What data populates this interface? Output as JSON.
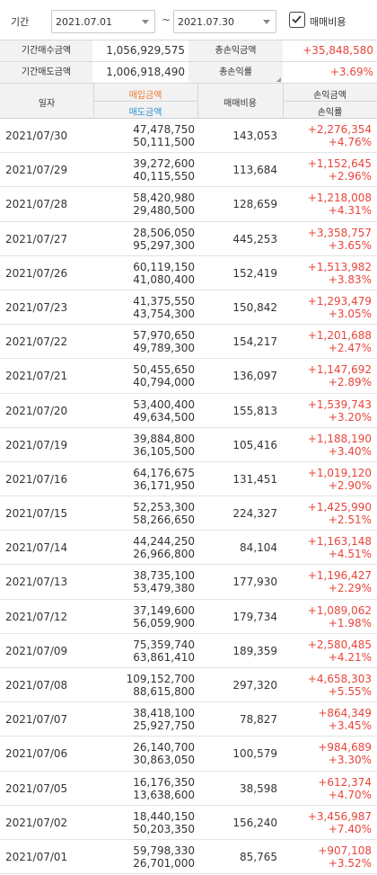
{
  "filter": {
    "label": "기간",
    "start_date": "2021.07.01",
    "separator": "~",
    "end_date": "2021.07.30",
    "fee_checkbox_label": "매매비용",
    "fee_checked": true
  },
  "summary": {
    "buy_label": "기간매수금액",
    "buy_value": "1,056,929,575",
    "sell_label": "기간매도금액",
    "sell_value": "1,006,918,490",
    "pl_label": "총손익금액",
    "pl_value": "+35,848,580",
    "rate_label": "총손익률",
    "rate_value": "+3.69%"
  },
  "headers": {
    "date": "일자",
    "buy": "매입금액",
    "sell": "매도금액",
    "fee": "매매비용",
    "pl": "손익금액",
    "rate": "손익률"
  },
  "colors": {
    "profit": "#e9453a",
    "buy_header": "#f07a2a",
    "sell_header": "#2a8fd6"
  },
  "rows": [
    {
      "date": "2021/07/30",
      "buy": "47,478,750",
      "sell": "50,111,500",
      "fee": "143,053",
      "pl": "+2,276,354",
      "rate": "+4.76%"
    },
    {
      "date": "2021/07/29",
      "buy": "39,272,600",
      "sell": "40,115,550",
      "fee": "113,684",
      "pl": "+1,152,645",
      "rate": "+2.96%"
    },
    {
      "date": "2021/07/28",
      "buy": "58,420,980",
      "sell": "29,480,500",
      "fee": "128,659",
      "pl": "+1,218,008",
      "rate": "+4.31%"
    },
    {
      "date": "2021/07/27",
      "buy": "28,506,050",
      "sell": "95,297,300",
      "fee": "445,253",
      "pl": "+3,358,757",
      "rate": "+3.65%"
    },
    {
      "date": "2021/07/26",
      "buy": "60,119,150",
      "sell": "41,080,400",
      "fee": "152,419",
      "pl": "+1,513,982",
      "rate": "+3.83%"
    },
    {
      "date": "2021/07/23",
      "buy": "41,375,550",
      "sell": "43,754,300",
      "fee": "150,842",
      "pl": "+1,293,479",
      "rate": "+3.05%"
    },
    {
      "date": "2021/07/22",
      "buy": "57,970,650",
      "sell": "49,789,300",
      "fee": "154,217",
      "pl": "+1,201,688",
      "rate": "+2.47%"
    },
    {
      "date": "2021/07/21",
      "buy": "50,455,650",
      "sell": "40,794,000",
      "fee": "136,097",
      "pl": "+1,147,692",
      "rate": "+2.89%"
    },
    {
      "date": "2021/07/20",
      "buy": "53,400,400",
      "sell": "49,634,500",
      "fee": "155,813",
      "pl": "+1,539,743",
      "rate": "+3.20%"
    },
    {
      "date": "2021/07/19",
      "buy": "39,884,800",
      "sell": "36,105,500",
      "fee": "105,416",
      "pl": "+1,188,190",
      "rate": "+3.40%"
    },
    {
      "date": "2021/07/16",
      "buy": "64,176,675",
      "sell": "36,171,950",
      "fee": "131,451",
      "pl": "+1,019,120",
      "rate": "+2.90%"
    },
    {
      "date": "2021/07/15",
      "buy": "52,253,300",
      "sell": "58,266,650",
      "fee": "224,327",
      "pl": "+1,425,990",
      "rate": "+2.51%"
    },
    {
      "date": "2021/07/14",
      "buy": "44,244,250",
      "sell": "26,966,800",
      "fee": "84,104",
      "pl": "+1,163,148",
      "rate": "+4.51%"
    },
    {
      "date": "2021/07/13",
      "buy": "38,735,100",
      "sell": "53,479,380",
      "fee": "177,930",
      "pl": "+1,196,427",
      "rate": "+2.29%"
    },
    {
      "date": "2021/07/12",
      "buy": "37,149,600",
      "sell": "56,059,900",
      "fee": "179,734",
      "pl": "+1,089,062",
      "rate": "+1.98%"
    },
    {
      "date": "2021/07/09",
      "buy": "75,359,740",
      "sell": "63,861,410",
      "fee": "189,359",
      "pl": "+2,580,485",
      "rate": "+4.21%"
    },
    {
      "date": "2021/07/08",
      "buy": "109,152,700",
      "sell": "88,615,800",
      "fee": "297,320",
      "pl": "+4,658,303",
      "rate": "+5.55%"
    },
    {
      "date": "2021/07/07",
      "buy": "38,418,100",
      "sell": "25,927,750",
      "fee": "78,827",
      "pl": "+864,349",
      "rate": "+3.45%"
    },
    {
      "date": "2021/07/06",
      "buy": "26,140,700",
      "sell": "30,863,050",
      "fee": "100,579",
      "pl": "+984,689",
      "rate": "+3.30%"
    },
    {
      "date": "2021/07/05",
      "buy": "16,176,350",
      "sell": "13,638,600",
      "fee": "38,598",
      "pl": "+612,374",
      "rate": "+4.70%"
    },
    {
      "date": "2021/07/02",
      "buy": "18,440,150",
      "sell": "50,203,350",
      "fee": "156,240",
      "pl": "+3,456,987",
      "rate": "+7.40%"
    },
    {
      "date": "2021/07/01",
      "buy": "59,798,330",
      "sell": "26,701,000",
      "fee": "85,765",
      "pl": "+907,108",
      "rate": "+3.52%"
    }
  ]
}
